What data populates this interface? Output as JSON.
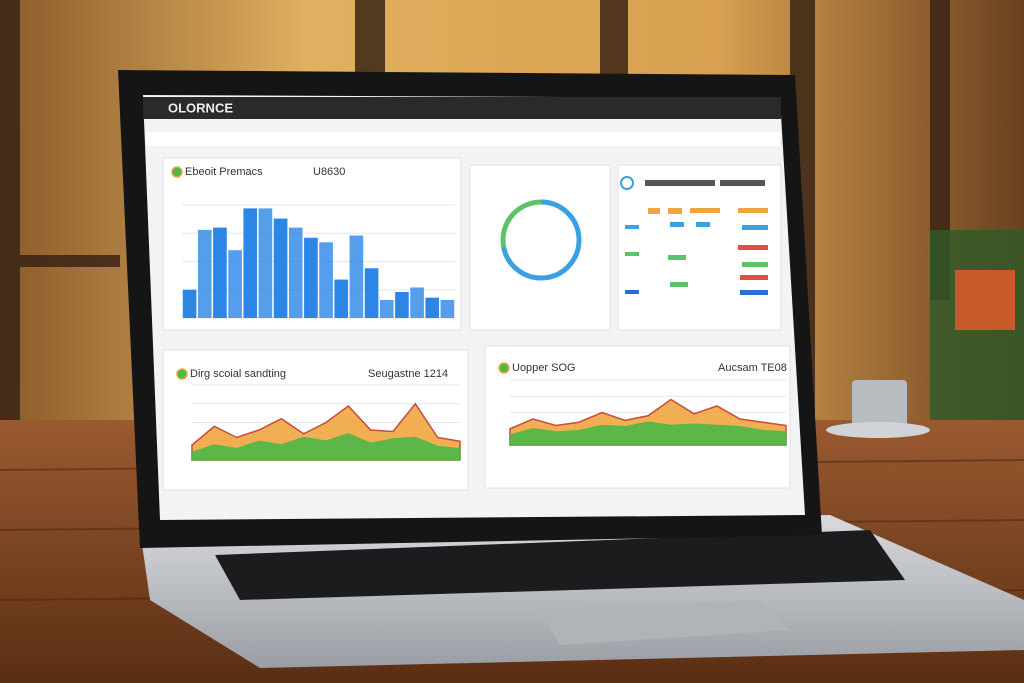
{
  "header": {
    "title": "OLORNCE"
  },
  "chart_data": [
    {
      "type": "bar",
      "title": "Ebeoit Premacs",
      "subtitle": "U8630",
      "color": "#2b86e6",
      "values": [
        25,
        78,
        80,
        60,
        97,
        97,
        88,
        80,
        71,
        67,
        34,
        73,
        44,
        16,
        23,
        27,
        18,
        16
      ],
      "ylim": [
        0,
        100
      ]
    },
    {
      "type": "donut",
      "values": [
        72,
        28
      ],
      "colors": [
        "#3aa0e0",
        "#5cc36a"
      ]
    },
    {
      "type": "area",
      "title": "Dirg scoial sandting",
      "subtitle": "Seugastne 1214",
      "ylim": [
        0,
        100
      ],
      "series": [
        {
          "color": "#f0a640",
          "values": [
            20,
            45,
            30,
            40,
            55,
            35,
            50,
            72,
            40,
            38,
            75,
            30,
            25
          ]
        },
        {
          "color": "#4cb848",
          "values": [
            10,
            20,
            15,
            25,
            20,
            30,
            25,
            35,
            22,
            28,
            30,
            18,
            15
          ]
        }
      ]
    },
    {
      "type": "area",
      "title": "Uopper SOG",
      "subtitle": "Aucsam TE08",
      "ylim": [
        0,
        100
      ],
      "series": [
        {
          "color": "#f0a640",
          "values": [
            25,
            40,
            30,
            35,
            50,
            38,
            45,
            70,
            48,
            60,
            40,
            35,
            30
          ]
        },
        {
          "color": "#4cb848",
          "values": [
            15,
            25,
            20,
            22,
            30,
            28,
            35,
            30,
            32,
            30,
            28,
            22,
            20
          ]
        }
      ]
    }
  ]
}
